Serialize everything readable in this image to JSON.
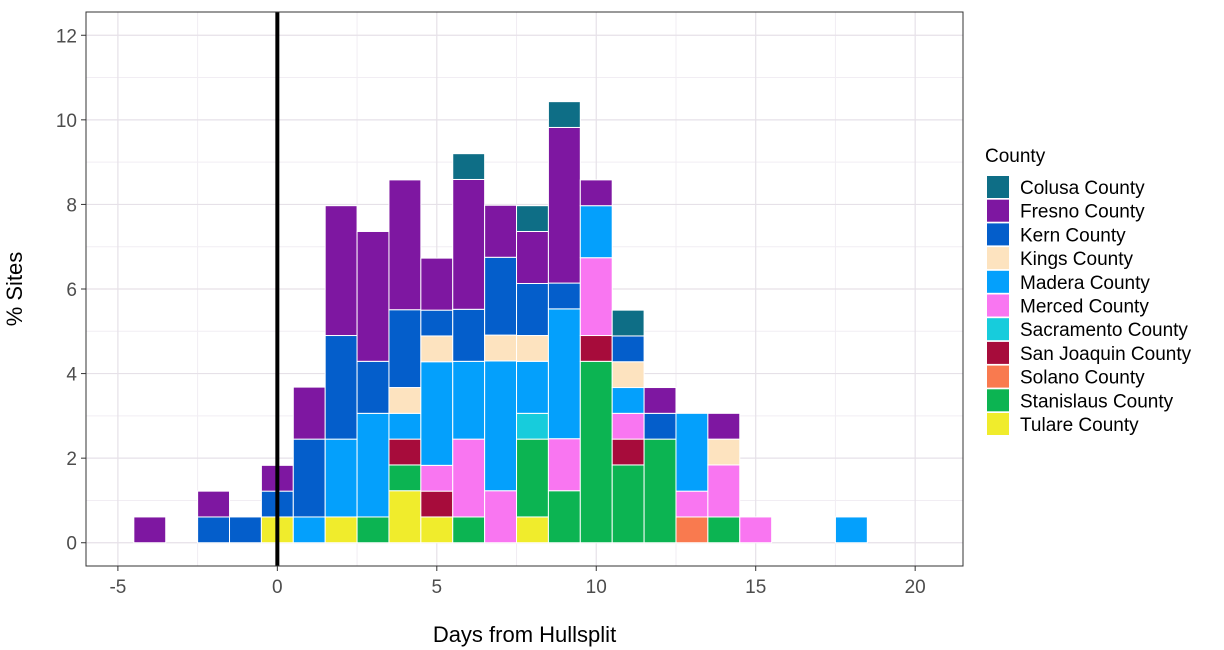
{
  "chart_data": {
    "type": "bar",
    "stacked": true,
    "xlabel": "Days from Hullsplit",
    "ylabel": "% Sites",
    "xlim": [
      -6,
      21.5
    ],
    "ylim": [
      -0.55,
      12.55
    ],
    "xticks": [
      "-5",
      "0",
      "5",
      "10",
      "15",
      "20"
    ],
    "xtick_values": [
      -5,
      0,
      5,
      10,
      15,
      20
    ],
    "yticks": [
      "0",
      "2",
      "4",
      "6",
      "8",
      "10",
      "12"
    ],
    "ytick_values": [
      0,
      2,
      4,
      6,
      8,
      10,
      12
    ],
    "grid": true,
    "vline_x": 0,
    "legend": {
      "title": "County",
      "position": "right",
      "entries": [
        {
          "name": "Colusa County",
          "color": "#0e6e86"
        },
        {
          "name": "Fresno County",
          "color": "#7e17a1"
        },
        {
          "name": "Kern County",
          "color": "#045ecb"
        },
        {
          "name": "Kings County",
          "color": "#fde3bf"
        },
        {
          "name": "Madera County",
          "color": "#04a0fc"
        },
        {
          "name": "Merced County",
          "color": "#f976f1"
        },
        {
          "name": "Sacramento County",
          "color": "#17ccdc"
        },
        {
          "name": "San Joaquin County",
          "color": "#a70c3b"
        },
        {
          "name": "Solano County",
          "color": "#f97a4f"
        },
        {
          "name": "Stanislaus County",
          "color": "#0cb452"
        },
        {
          "name": "Tulare County",
          "color": "#f0ec2c"
        }
      ]
    },
    "bins": [
      {
        "x": -4,
        "segments": [
          {
            "c": "Fresno County",
            "v": 0.61
          }
        ]
      },
      {
        "x": -2,
        "segments": [
          {
            "c": "Kern County",
            "v": 0.61
          },
          {
            "c": "Fresno County",
            "v": 0.61
          }
        ]
      },
      {
        "x": -1,
        "segments": [
          {
            "c": "Kern County",
            "v": 0.61
          }
        ]
      },
      {
        "x": 0,
        "segments": [
          {
            "c": "Tulare County",
            "v": 0.61
          },
          {
            "c": "Kern County",
            "v": 0.61
          },
          {
            "c": "Fresno County",
            "v": 0.61
          }
        ]
      },
      {
        "x": 1,
        "segments": [
          {
            "c": "Madera County",
            "v": 0.61
          },
          {
            "c": "Kern County",
            "v": 1.84
          },
          {
            "c": "Fresno County",
            "v": 1.23
          }
        ]
      },
      {
        "x": 2,
        "segments": [
          {
            "c": "Tulare County",
            "v": 0.61
          },
          {
            "c": "Madera County",
            "v": 1.84
          },
          {
            "c": "Kern County",
            "v": 2.45
          },
          {
            "c": "Fresno County",
            "v": 3.07
          }
        ]
      },
      {
        "x": 3,
        "segments": [
          {
            "c": "Stanislaus County",
            "v": 0.61
          },
          {
            "c": "Madera County",
            "v": 2.45
          },
          {
            "c": "Kern County",
            "v": 1.23
          },
          {
            "c": "Fresno County",
            "v": 3.07
          }
        ]
      },
      {
        "x": 4,
        "segments": [
          {
            "c": "Tulare County",
            "v": 1.23
          },
          {
            "c": "Stanislaus County",
            "v": 0.61
          },
          {
            "c": "San Joaquin County",
            "v": 0.61
          },
          {
            "c": "Madera County",
            "v": 0.61
          },
          {
            "c": "Kings County",
            "v": 0.61
          },
          {
            "c": "Kern County",
            "v": 1.84
          },
          {
            "c": "Fresno County",
            "v": 3.07
          }
        ]
      },
      {
        "x": 5,
        "segments": [
          {
            "c": "Tulare County",
            "v": 0.61
          },
          {
            "c": "San Joaquin County",
            "v": 0.61
          },
          {
            "c": "Merced County",
            "v": 0.61
          },
          {
            "c": "Madera County",
            "v": 2.45
          },
          {
            "c": "Kings County",
            "v": 0.61
          },
          {
            "c": "Kern County",
            "v": 0.61
          },
          {
            "c": "Fresno County",
            "v": 1.23
          }
        ]
      },
      {
        "x": 6,
        "segments": [
          {
            "c": "Stanislaus County",
            "v": 0.61
          },
          {
            "c": "Merced County",
            "v": 1.84
          },
          {
            "c": "Madera County",
            "v": 1.84
          },
          {
            "c": "Kern County",
            "v": 1.23
          },
          {
            "c": "Fresno County",
            "v": 3.07
          },
          {
            "c": "Colusa County",
            "v": 0.61
          }
        ]
      },
      {
        "x": 7,
        "segments": [
          {
            "c": "Merced County",
            "v": 1.23
          },
          {
            "c": "Madera County",
            "v": 3.07
          },
          {
            "c": "Kings County",
            "v": 0.61
          },
          {
            "c": "Kern County",
            "v": 1.84
          },
          {
            "c": "Fresno County",
            "v": 1.23
          }
        ]
      },
      {
        "x": 8,
        "segments": [
          {
            "c": "Tulare County",
            "v": 0.61
          },
          {
            "c": "Stanislaus County",
            "v": 1.84
          },
          {
            "c": "Sacramento County",
            "v": 0.61
          },
          {
            "c": "Madera County",
            "v": 1.23
          },
          {
            "c": "Kings County",
            "v": 0.61
          },
          {
            "c": "Kern County",
            "v": 1.23
          },
          {
            "c": "Fresno County",
            "v": 1.23
          },
          {
            "c": "Colusa County",
            "v": 0.61
          }
        ]
      },
      {
        "x": 9,
        "segments": [
          {
            "c": "Stanislaus County",
            "v": 1.23
          },
          {
            "c": "Merced County",
            "v": 1.23
          },
          {
            "c": "Madera County",
            "v": 3.07
          },
          {
            "c": "Kern County",
            "v": 0.61
          },
          {
            "c": "Fresno County",
            "v": 3.68
          },
          {
            "c": "Colusa County",
            "v": 0.61
          }
        ]
      },
      {
        "x": 10,
        "segments": [
          {
            "c": "Stanislaus County",
            "v": 4.29
          },
          {
            "c": "San Joaquin County",
            "v": 0.61
          },
          {
            "c": "Merced County",
            "v": 1.84
          },
          {
            "c": "Madera County",
            "v": 1.23
          },
          {
            "c": "Fresno County",
            "v": 0.61
          }
        ]
      },
      {
        "x": 11,
        "segments": [
          {
            "c": "Stanislaus County",
            "v": 1.84
          },
          {
            "c": "San Joaquin County",
            "v": 0.61
          },
          {
            "c": "Merced County",
            "v": 0.61
          },
          {
            "c": "Madera County",
            "v": 0.61
          },
          {
            "c": "Kings County",
            "v": 0.61
          },
          {
            "c": "Kern County",
            "v": 0.61
          },
          {
            "c": "Colusa County",
            "v": 0.61
          }
        ]
      },
      {
        "x": 12,
        "segments": [
          {
            "c": "Stanislaus County",
            "v": 2.45
          },
          {
            "c": "Kern County",
            "v": 0.61
          },
          {
            "c": "Fresno County",
            "v": 0.61
          }
        ]
      },
      {
        "x": 13,
        "segments": [
          {
            "c": "Solano County",
            "v": 0.61
          },
          {
            "c": "Merced County",
            "v": 0.61
          },
          {
            "c": "Madera County",
            "v": 1.84
          }
        ]
      },
      {
        "x": 14,
        "segments": [
          {
            "c": "Stanislaus County",
            "v": 0.61
          },
          {
            "c": "Merced County",
            "v": 1.23
          },
          {
            "c": "Kings County",
            "v": 0.61
          },
          {
            "c": "Fresno County",
            "v": 0.61
          }
        ]
      },
      {
        "x": 15,
        "segments": [
          {
            "c": "Merced County",
            "v": 0.61
          }
        ]
      },
      {
        "x": 18,
        "segments": [
          {
            "c": "Madera County",
            "v": 0.61
          }
        ]
      }
    ]
  }
}
